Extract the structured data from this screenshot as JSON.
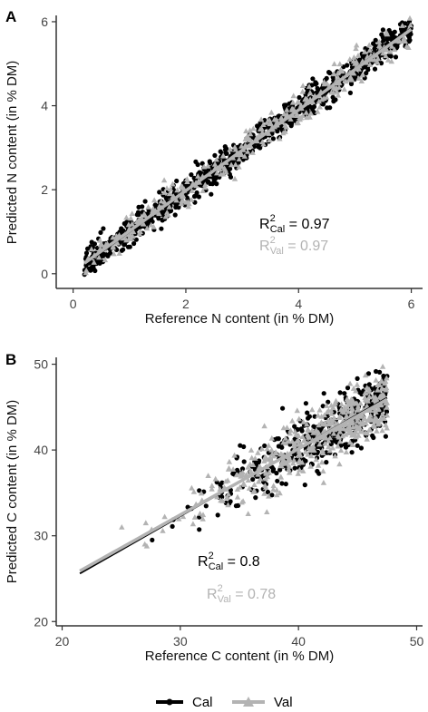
{
  "colors": {
    "cal": "#000000",
    "val": "#b3b3b3",
    "axis": "#333333",
    "tick_text": "#444444"
  },
  "legend": {
    "items": [
      {
        "label": "Cal",
        "color": "#000000",
        "marker": "circle"
      },
      {
        "label": "Val",
        "color": "#b3b3b3",
        "marker": "triangle"
      }
    ]
  },
  "chart_data": [
    {
      "type": "scatter",
      "panel_label": "A",
      "xlabel": "Reference N content (in % DM)",
      "ylabel": "Predicted N content (in % DM)",
      "xlim": [
        -0.3,
        6.2
      ],
      "ylim": [
        -0.35,
        6.15
      ],
      "xticks": [
        0,
        2,
        4,
        6
      ],
      "yticks": [
        0,
        2,
        4,
        6
      ],
      "grid": false,
      "legend": "bottom",
      "series": [
        {
          "name": "Cal",
          "marker": "circle",
          "color": "#000000",
          "x_range": [
            0.2,
            6.0
          ],
          "n_points": 900,
          "noise": 0.17
        },
        {
          "name": "Val",
          "marker": "triangle",
          "color": "#b3b3b3",
          "x_range": [
            0.2,
            6.0
          ],
          "n_points": 340,
          "noise": 0.2
        }
      ],
      "fit_lines": [
        {
          "series": "Cal",
          "x": [
            0.2,
            6.0
          ],
          "y": [
            0.22,
            5.85
          ]
        },
        {
          "series": "Val",
          "x": [
            0.2,
            6.0
          ],
          "y": [
            0.25,
            5.82
          ]
        }
      ],
      "annotations": [
        {
          "label": "R",
          "sup": "2",
          "sub": "Cal",
          "text": " = 0.97",
          "color": "#000000"
        },
        {
          "label": "R",
          "sup": "2",
          "sub": "Val",
          "text": " = 0.97",
          "color": "#b3b3b3"
        }
      ]
    },
    {
      "type": "scatter",
      "panel_label": "B",
      "xlabel": "Reference C content (in % DM)",
      "ylabel": "Predicted C content (in % DM)",
      "xlim": [
        19.5,
        50.5
      ],
      "ylim": [
        19.5,
        50.8
      ],
      "xticks": [
        20,
        30,
        40,
        50
      ],
      "yticks": [
        20,
        30,
        40,
        50
      ],
      "grid": false,
      "legend": "bottom",
      "series": [
        {
          "name": "Cal",
          "marker": "circle",
          "color": "#000000",
          "x_range": [
            21.5,
            47.5
          ],
          "n_points": 420,
          "noise": 1.8
        },
        {
          "name": "Val",
          "marker": "triangle",
          "color": "#b3b3b3",
          "x_range": [
            22.0,
            47.5
          ],
          "n_points": 460,
          "noise": 1.7
        }
      ],
      "fit_lines": [
        {
          "series": "Cal",
          "x": [
            21.5,
            47.5
          ],
          "y": [
            25.6,
            46.1
          ]
        },
        {
          "series": "Val",
          "x": [
            21.5,
            47.5
          ],
          "y": [
            25.9,
            45.9
          ]
        }
      ],
      "annotations": [
        {
          "label": "R",
          "sup": "2",
          "sub": "Cal",
          "text": " = 0.8",
          "color": "#000000"
        },
        {
          "label": "R",
          "sup": "2",
          "sub": "Val",
          "text": " = 0.78",
          "color": "#b3b3b3"
        }
      ]
    }
  ]
}
